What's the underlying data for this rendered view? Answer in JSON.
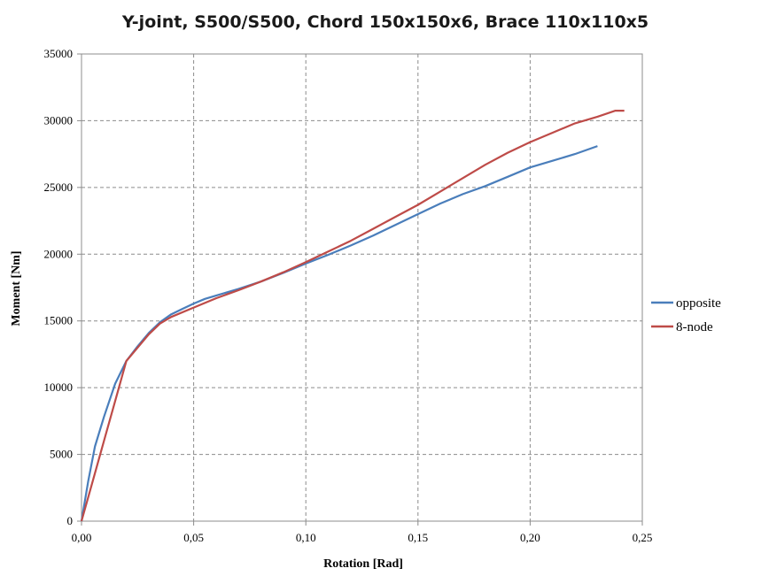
{
  "chart_data": {
    "type": "line",
    "title": "Y-joint, S500/S500, Chord  150x150x6, Brace 110x110x5",
    "xlabel": "Rotation  [Rad]",
    "ylabel": "Moment  [Nm]",
    "xlim": [
      0,
      0.25
    ],
    "ylim": [
      0,
      35000
    ],
    "x_ticks": [
      "0,00",
      "0,05",
      "0,10",
      "0,15",
      "0,20",
      "0,25"
    ],
    "y_ticks": [
      "0",
      "5000",
      "10000",
      "15000",
      "20000",
      "25000",
      "30000",
      "35000"
    ],
    "grid": true,
    "legend_position": "right",
    "series": [
      {
        "name": "opposite",
        "color": "#4a7ebb",
        "points": [
          [
            0,
            0
          ],
          [
            0.003,
            3000
          ],
          [
            0.006,
            5600
          ],
          [
            0.01,
            7800
          ],
          [
            0.015,
            10300
          ],
          [
            0.02,
            12000
          ],
          [
            0.025,
            13100
          ],
          [
            0.03,
            14100
          ],
          [
            0.035,
            14900
          ],
          [
            0.04,
            15500
          ],
          [
            0.045,
            15900
          ],
          [
            0.05,
            16300
          ],
          [
            0.055,
            16650
          ],
          [
            0.06,
            16900
          ],
          [
            0.07,
            17400
          ],
          [
            0.08,
            17950
          ],
          [
            0.09,
            18600
          ],
          [
            0.1,
            19300
          ],
          [
            0.11,
            19950
          ],
          [
            0.12,
            20650
          ],
          [
            0.13,
            21400
          ],
          [
            0.14,
            22200
          ],
          [
            0.15,
            23000
          ],
          [
            0.16,
            23800
          ],
          [
            0.17,
            24500
          ],
          [
            0.18,
            25100
          ],
          [
            0.19,
            25800
          ],
          [
            0.2,
            26500
          ],
          [
            0.21,
            27000
          ],
          [
            0.22,
            27500
          ],
          [
            0.23,
            28100
          ]
        ]
      },
      {
        "name": "8-node",
        "color": "#be4b48",
        "points": [
          [
            0,
            0
          ],
          [
            0.005,
            3000
          ],
          [
            0.01,
            6000
          ],
          [
            0.015,
            9000
          ],
          [
            0.02,
            12000
          ],
          [
            0.025,
            13000
          ],
          [
            0.03,
            14000
          ],
          [
            0.035,
            14800
          ],
          [
            0.04,
            15300
          ],
          [
            0.05,
            16000
          ],
          [
            0.06,
            16700
          ],
          [
            0.07,
            17300
          ],
          [
            0.08,
            17950
          ],
          [
            0.09,
            18650
          ],
          [
            0.1,
            19400
          ],
          [
            0.11,
            20200
          ],
          [
            0.12,
            21000
          ],
          [
            0.13,
            21900
          ],
          [
            0.14,
            22800
          ],
          [
            0.15,
            23700
          ],
          [
            0.16,
            24700
          ],
          [
            0.17,
            25700
          ],
          [
            0.18,
            26700
          ],
          [
            0.19,
            27600
          ],
          [
            0.2,
            28400
          ],
          [
            0.21,
            29100
          ],
          [
            0.22,
            29800
          ],
          [
            0.23,
            30300
          ],
          [
            0.238,
            30750
          ],
          [
            0.242,
            30750
          ]
        ]
      }
    ]
  }
}
